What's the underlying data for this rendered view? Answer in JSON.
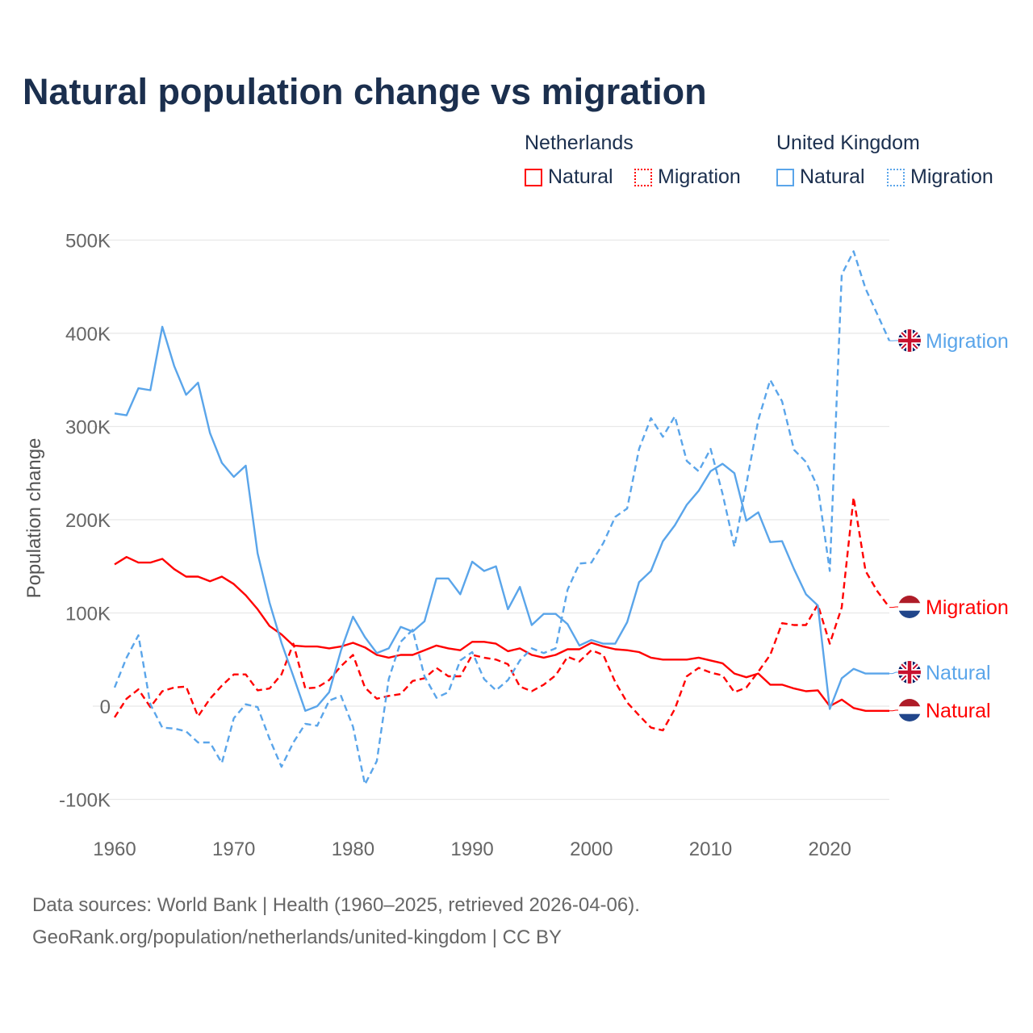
{
  "chart_data": {
    "type": "line",
    "title": "Natural population change vs migration",
    "ylabel": "Population change",
    "xlabel": "",
    "ylim": [
      -100000,
      500000
    ],
    "yticks": [
      -100000,
      0,
      100000,
      200000,
      300000,
      400000,
      500000
    ],
    "ytick_labels": [
      "-100K",
      "0",
      "100K",
      "200K",
      "300K",
      "400K",
      "500K"
    ],
    "xticks": [
      1960,
      1970,
      1980,
      1990,
      2000,
      2010,
      2020
    ],
    "xtick_labels": [
      "1960",
      "1970",
      "1980",
      "1990",
      "2000",
      "2010",
      "2020"
    ],
    "grid": true,
    "legend_position": "top-right",
    "x_start": 1960,
    "series": [
      {
        "name": "Natural",
        "country": "Netherlands",
        "color": "#ff0000",
        "dash": false,
        "end_label": "Natural",
        "flag": "nl",
        "values": [
          152,
          160,
          154,
          154,
          158,
          147,
          139,
          139,
          134,
          139,
          131,
          119,
          104,
          86,
          77,
          65,
          64,
          64,
          62,
          64,
          68,
          63,
          55,
          52,
          55,
          55,
          60,
          65,
          62,
          60,
          69,
          69,
          67,
          59,
          62,
          55,
          52,
          55,
          61,
          61,
          68,
          64,
          61,
          60,
          58,
          52,
          50,
          50,
          50,
          52,
          49,
          46,
          35,
          31,
          35,
          23,
          23,
          19,
          16,
          17,
          0,
          7,
          -2,
          -5,
          -5,
          -5
        ]
      },
      {
        "name": "Migration",
        "country": "Netherlands",
        "color": "#ff0000",
        "dash": true,
        "end_label": "Migration",
        "flag": "nl",
        "values": [
          -12,
          8,
          18,
          -1,
          16,
          20,
          21,
          -11,
          8,
          22,
          34,
          34,
          17,
          19,
          34,
          67,
          19,
          20,
          28,
          43,
          55,
          20,
          8,
          11,
          13,
          27,
          30,
          41,
          32,
          32,
          55,
          52,
          50,
          45,
          21,
          16,
          23,
          33,
          53,
          48,
          60,
          55,
          26,
          4,
          -10,
          -23,
          -26,
          -3,
          32,
          41,
          36,
          33,
          15,
          20,
          37,
          55,
          89,
          87,
          87,
          109,
          67,
          106,
          224,
          145,
          123,
          106
        ]
      },
      {
        "name": "Natural",
        "country": "United Kingdom",
        "color": "#5aa5ea",
        "dash": false,
        "end_label": "Natural",
        "flag": "uk",
        "values": [
          314,
          312,
          341,
          339,
          407,
          365,
          334,
          347,
          293,
          261,
          246,
          258,
          164,
          111,
          68,
          32,
          -5,
          0,
          15,
          60,
          96,
          74,
          57,
          62,
          85,
          80,
          91,
          137,
          137,
          120,
          155,
          145,
          150,
          104,
          128,
          87,
          99,
          99,
          88,
          65,
          71,
          67,
          67,
          90,
          133,
          145,
          177,
          194,
          216,
          231,
          252,
          260,
          250,
          199,
          208,
          176,
          177,
          147,
          120,
          108,
          -3,
          30,
          40,
          35,
          35,
          35
        ]
      },
      {
        "name": "Migration",
        "country": "United Kingdom",
        "color": "#5aa5ea",
        "dash": true,
        "end_label": "Migration",
        "flag": "uk",
        "values": [
          20,
          52,
          76,
          2,
          -23,
          -24,
          -27,
          -39,
          -39,
          -61,
          -13,
          2,
          -1,
          -35,
          -65,
          -39,
          -19,
          -21,
          6,
          11,
          -22,
          -84,
          -59,
          29,
          69,
          82,
          32,
          9,
          15,
          49,
          58,
          29,
          17,
          28,
          49,
          62,
          57,
          62,
          125,
          153,
          154,
          175,
          203,
          212,
          276,
          309,
          289,
          311,
          263,
          252,
          276,
          228,
          171,
          238,
          307,
          350,
          327,
          275,
          262,
          235,
          145,
          463,
          488,
          448,
          420,
          392
        ]
      }
    ],
    "value_unit": "thousands"
  },
  "legend": {
    "groups": [
      {
        "label": "Netherlands",
        "items": [
          {
            "label": "Natural"
          },
          {
            "label": "Migration"
          }
        ]
      },
      {
        "label": "United Kingdom",
        "items": [
          {
            "label": "Natural"
          },
          {
            "label": "Migration"
          }
        ]
      }
    ]
  },
  "footer": {
    "line1": "Data sources: World Bank | Health (1960–2025, retrieved 2026-04-06).",
    "line2": "GeoRank.org/population/netherlands/united-kingdom | CC BY"
  }
}
